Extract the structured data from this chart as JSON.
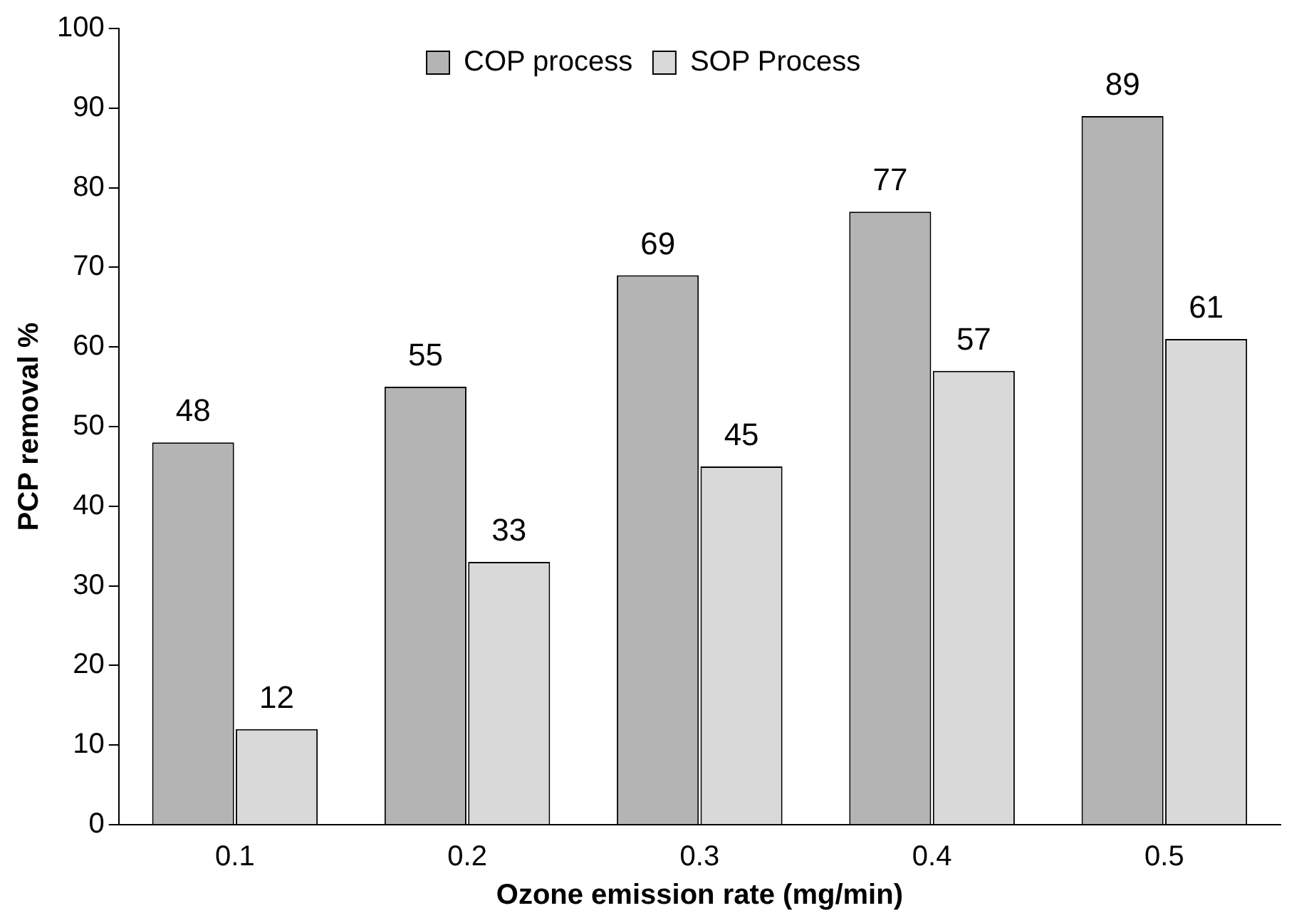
{
  "chart_data": {
    "type": "bar",
    "xlabel": "Ozone emission rate (mg/min)",
    "ylabel": "PCP removal %",
    "categories": [
      "0.1",
      "0.2",
      "0.3",
      "0.4",
      "0.5"
    ],
    "series": [
      {
        "name": "COP process",
        "color": "#b4b4b4",
        "values": [
          48,
          55,
          69,
          77,
          89
        ]
      },
      {
        "name": "SOP Process",
        "color": "#d9d9d9",
        "values": [
          12,
          33,
          45,
          57,
          61
        ]
      }
    ],
    "ylim": [
      0,
      100
    ],
    "yticks": [
      0,
      10,
      20,
      30,
      40,
      50,
      60,
      70,
      80,
      90,
      100
    ],
    "grid": false,
    "legend": "top",
    "data_labels": true
  }
}
